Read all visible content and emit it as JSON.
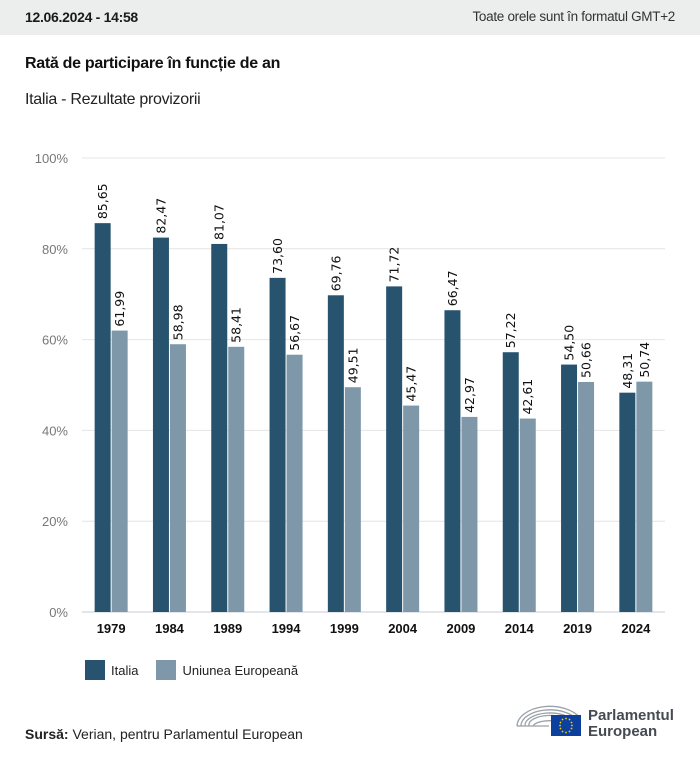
{
  "header": {
    "timestamp": "12.06.2024 - 14:58",
    "timezone_note": "Toate orele sunt în formatul GMT+2"
  },
  "title": "Rată de participare în funcție de an",
  "subtitle": "Italia - Rezultate provizorii",
  "colors": {
    "italia": "#27536f",
    "ue": "#7e97a9",
    "grid": "#e4e4e4",
    "axis": "#c6cdd6"
  },
  "chart_data": {
    "type": "bar",
    "title": "Rată de participare în funcție de an",
    "subtitle": "Italia - Rezultate provizorii",
    "xlabel": "",
    "ylabel": "",
    "ylim": [
      0,
      100
    ],
    "y_ticks": [
      "0%",
      "20%",
      "40%",
      "60%",
      "80%",
      "100%"
    ],
    "y_tick_values": [
      0,
      20,
      40,
      60,
      80,
      100
    ],
    "grid": true,
    "legend_position": "bottom-left",
    "categories": [
      "1979",
      "1984",
      "1989",
      "1994",
      "1999",
      "2004",
      "2009",
      "2014",
      "2019",
      "2024"
    ],
    "series": [
      {
        "name": "Italia",
        "color": "#27536f",
        "values": [
          85.65,
          82.47,
          81.07,
          73.6,
          69.76,
          71.72,
          66.47,
          57.22,
          54.5,
          48.31
        ],
        "labels": [
          "85,65",
          "82,47",
          "81,07",
          "73,60",
          "69,76",
          "71,72",
          "66,47",
          "57,22",
          "54,50",
          "48,31"
        ]
      },
      {
        "name": "Uniunea Europeană",
        "color": "#7e97a9",
        "values": [
          61.99,
          58.98,
          58.41,
          56.67,
          49.51,
          45.47,
          42.97,
          42.61,
          50.66,
          50.74
        ],
        "labels": [
          "61,99",
          "58,98",
          "58,41",
          "56,67",
          "49,51",
          "45,47",
          "42,97",
          "42,61",
          "50,66",
          "50,74"
        ]
      }
    ]
  },
  "legend": {
    "items": [
      {
        "label": "Italia",
        "color": "#27536f"
      },
      {
        "label": "Uniunea Europeană",
        "color": "#7e97a9"
      }
    ]
  },
  "footer": {
    "source_label": "Sursă:",
    "source_text": " Verian, pentru Parlamentul European",
    "logo_line1": "Parlamentul",
    "logo_line2": "European"
  }
}
